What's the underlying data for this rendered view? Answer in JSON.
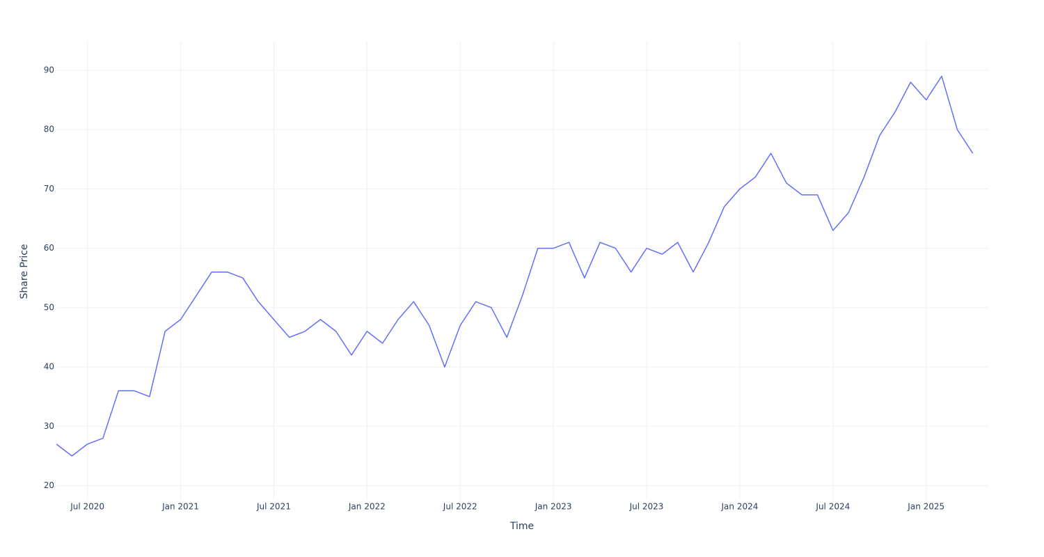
{
  "chart_data": {
    "type": "line",
    "x_label": "Time",
    "y_label": "Share Price",
    "x": [
      "2020-05",
      "2020-06",
      "2020-07",
      "2020-08",
      "2020-09",
      "2020-10",
      "2020-11",
      "2020-12",
      "2021-01",
      "2021-02",
      "2021-03",
      "2021-04",
      "2021-05",
      "2021-06",
      "2021-07",
      "2021-08",
      "2021-09",
      "2021-10",
      "2021-11",
      "2021-12",
      "2022-01",
      "2022-02",
      "2022-03",
      "2022-04",
      "2022-05",
      "2022-06",
      "2022-07",
      "2022-08",
      "2022-09",
      "2022-10",
      "2022-11",
      "2022-12",
      "2023-01",
      "2023-02",
      "2023-03",
      "2023-04",
      "2023-05",
      "2023-06",
      "2023-07",
      "2023-08",
      "2023-09",
      "2023-10",
      "2023-11",
      "2023-12",
      "2024-01",
      "2024-02",
      "2024-03",
      "2024-04",
      "2024-05",
      "2024-06",
      "2024-07",
      "2024-08",
      "2024-09",
      "2024-10",
      "2024-11",
      "2024-12",
      "2025-01",
      "2025-02",
      "2025-03",
      "2025-04"
    ],
    "series": [
      {
        "name": "Share Price",
        "color": "#636efa",
        "values": [
          27,
          25,
          27,
          28,
          36,
          36,
          35,
          46,
          48,
          52,
          56,
          56,
          55,
          51,
          48,
          45,
          46,
          48,
          46,
          42,
          46,
          44,
          48,
          51,
          47,
          40,
          47,
          51,
          50,
          45,
          52,
          60,
          60,
          61,
          55,
          61,
          60,
          56,
          60,
          59,
          61,
          56,
          61,
          67,
          70,
          72,
          76,
          71,
          69,
          69,
          63,
          66,
          72,
          79,
          83,
          88,
          85,
          89,
          80,
          76
        ]
      }
    ],
    "xlim": [
      "2020-05",
      "2025-05"
    ],
    "xticks": [
      {
        "value": "2020-07",
        "label": "Jul 2020"
      },
      {
        "value": "2021-01",
        "label": "Jan 2021"
      },
      {
        "value": "2021-07",
        "label": "Jul 2021"
      },
      {
        "value": "2022-01",
        "label": "Jan 2022"
      },
      {
        "value": "2022-07",
        "label": "Jul 2022"
      },
      {
        "value": "2023-01",
        "label": "Jan 2023"
      },
      {
        "value": "2023-07",
        "label": "Jul 2023"
      },
      {
        "value": "2024-01",
        "label": "Jan 2024"
      },
      {
        "value": "2024-07",
        "label": "Jul 2024"
      },
      {
        "value": "2025-01",
        "label": "Jan 2025"
      }
    ],
    "ylim": [
      17.6,
      94.8
    ],
    "yticks": [
      20,
      30,
      40,
      50,
      60,
      70,
      80,
      90
    ],
    "grid": true
  }
}
